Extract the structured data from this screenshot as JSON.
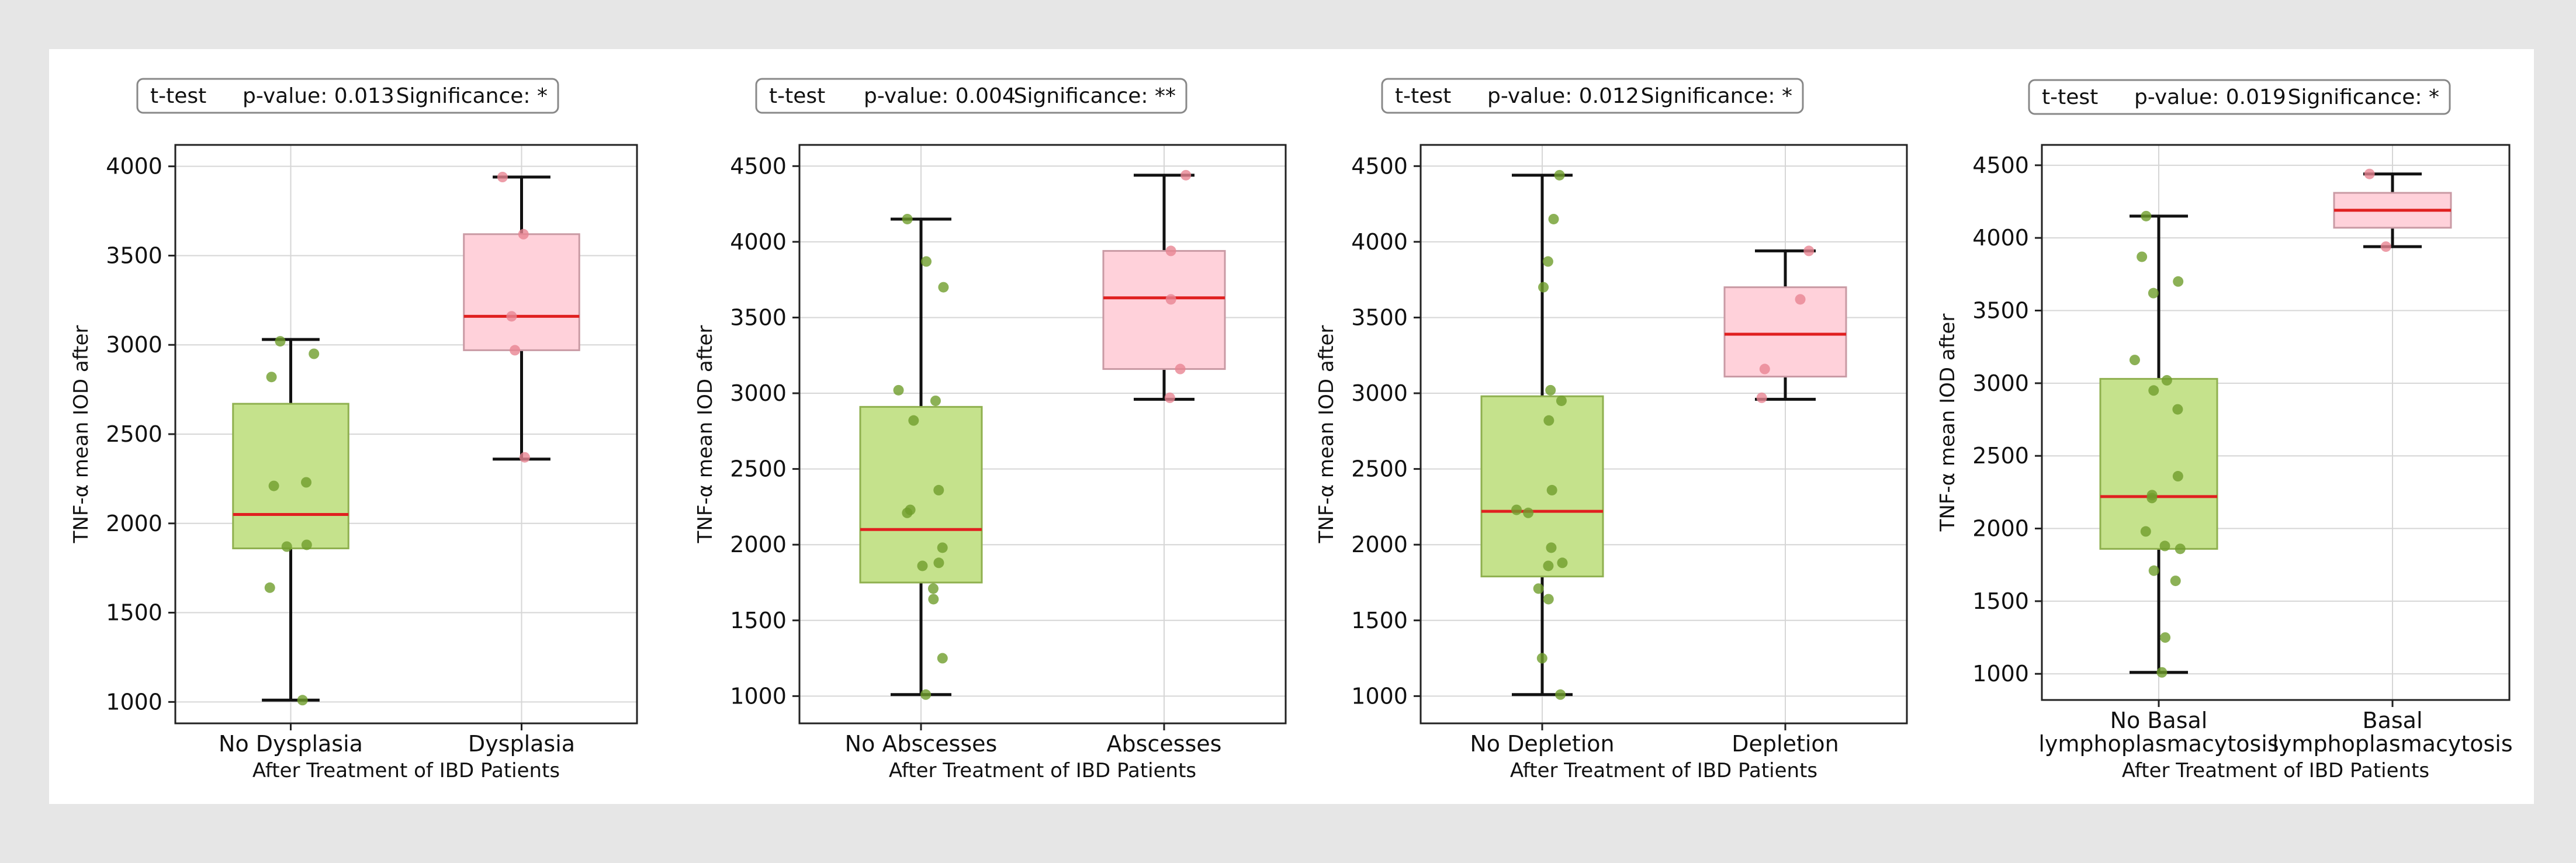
{
  "chart_data": [
    {
      "type": "box",
      "stats_test": "t-test",
      "stats_pvalue": "p-value: 0.013",
      "stats_significance": "Significance: *",
      "ylabel": "TNF-α mean IOD after",
      "xlabel": "After Treatment of IBD Patients",
      "ylim": [
        880,
        4120
      ],
      "yticks": [
        1000,
        1500,
        2000,
        2500,
        3000,
        3500,
        4000
      ],
      "categories": [
        {
          "label_lines": [
            "No Dysplasia"
          ],
          "color": "#c5e28c",
          "edge": "#8fb04f",
          "point_color": "#6f9e2c",
          "whisker_low": 1010,
          "q1": 1860,
          "median": 2050,
          "q3": 2670,
          "whisker_high": 3030,
          "points": [
            1010,
            1640,
            1870,
            1880,
            2210,
            2230,
            2820,
            2950,
            3020
          ]
        },
        {
          "label_lines": [
            "Dysplasia"
          ],
          "color": "#ffd1da",
          "edge": "#c99aa4",
          "point_color": "#e88592",
          "whisker_low": 2360,
          "q1": 2970,
          "median": 3160,
          "q3": 3620,
          "whisker_high": 3940,
          "points": [
            2370,
            2970,
            3160,
            3620,
            3940
          ]
        }
      ]
    },
    {
      "type": "box",
      "stats_test": "t-test",
      "stats_pvalue": "p-value: 0.004",
      "stats_significance": "Significance: **",
      "ylabel": "TNF-α mean IOD after",
      "xlabel": "After Treatment of IBD Patients",
      "ylim": [
        820,
        4640
      ],
      "yticks": [
        1000,
        1500,
        2000,
        2500,
        3000,
        3500,
        4000,
        4500
      ],
      "categories": [
        {
          "label_lines": [
            "No Abscesses"
          ],
          "color": "#c5e28c",
          "edge": "#8fb04f",
          "point_color": "#6f9e2c",
          "whisker_low": 1010,
          "q1": 1750,
          "median": 2100,
          "q3": 2910,
          "whisker_high": 4150,
          "points": [
            1010,
            1250,
            1640,
            1710,
            1860,
            1880,
            1980,
            2210,
            2230,
            2360,
            2820,
            2950,
            3020,
            3700,
            3870,
            4150
          ]
        },
        {
          "label_lines": [
            "Abscesses"
          ],
          "color": "#ffd1da",
          "edge": "#c99aa4",
          "point_color": "#e88592",
          "whisker_low": 2960,
          "q1": 3160,
          "median": 3630,
          "q3": 3940,
          "whisker_high": 4440,
          "points": [
            2970,
            3160,
            3620,
            3940,
            4440
          ]
        }
      ]
    },
    {
      "type": "box",
      "stats_test": "t-test",
      "stats_pvalue": "p-value: 0.012",
      "stats_significance": "Significance: *",
      "ylabel": "TNF-α mean IOD after",
      "xlabel": "After Treatment of IBD Patients",
      "ylim": [
        820,
        4640
      ],
      "yticks": [
        1000,
        1500,
        2000,
        2500,
        3000,
        3500,
        4000,
        4500
      ],
      "categories": [
        {
          "label_lines": [
            "No Depletion"
          ],
          "color": "#c5e28c",
          "edge": "#8fb04f",
          "point_color": "#6f9e2c",
          "whisker_low": 1010,
          "q1": 1790,
          "median": 2220,
          "q3": 2980,
          "whisker_high": 4440,
          "points": [
            1010,
            1250,
            1640,
            1710,
            1860,
            1880,
            1980,
            2210,
            2230,
            2360,
            2820,
            2950,
            3020,
            3700,
            3870,
            4150,
            4440
          ]
        },
        {
          "label_lines": [
            "Depletion"
          ],
          "color": "#ffd1da",
          "edge": "#c99aa4",
          "point_color": "#e88592",
          "whisker_low": 2960,
          "q1": 3110,
          "median": 3390,
          "q3": 3700,
          "whisker_high": 3940,
          "points": [
            2970,
            3160,
            3620,
            3940
          ]
        }
      ]
    },
    {
      "type": "box",
      "stats_test": "t-test",
      "stats_pvalue": "p-value: 0.019",
      "stats_significance": "Significance: *",
      "ylabel": "TNF-α mean IOD after",
      "xlabel": "After Treatment of IBD Patients",
      "ylim": [
        820,
        4640
      ],
      "yticks": [
        1000,
        1500,
        2000,
        2500,
        3000,
        3500,
        4000,
        4500
      ],
      "categories": [
        {
          "label_lines": [
            "No Basal",
            "lymphoplasmacytosis"
          ],
          "color": "#c5e28c",
          "edge": "#8fb04f",
          "point_color": "#6f9e2c",
          "whisker_low": 1010,
          "q1": 1860,
          "median": 2220,
          "q3": 3030,
          "whisker_high": 4150,
          "points": [
            1010,
            1250,
            1640,
            1710,
            1860,
            1880,
            1980,
            2210,
            2230,
            2360,
            2820,
            2950,
            3020,
            3160,
            3620,
            3700,
            3870,
            4150
          ]
        },
        {
          "label_lines": [
            "Basal",
            "lymphoplasmacytosis"
          ],
          "color": "#ffd1da",
          "edge": "#c99aa4",
          "point_color": "#e88592",
          "whisker_low": 3940,
          "q1": 4070,
          "median": 4190,
          "q3": 4310,
          "whisker_high": 4440,
          "points": [
            3940,
            4440
          ]
        }
      ]
    }
  ]
}
